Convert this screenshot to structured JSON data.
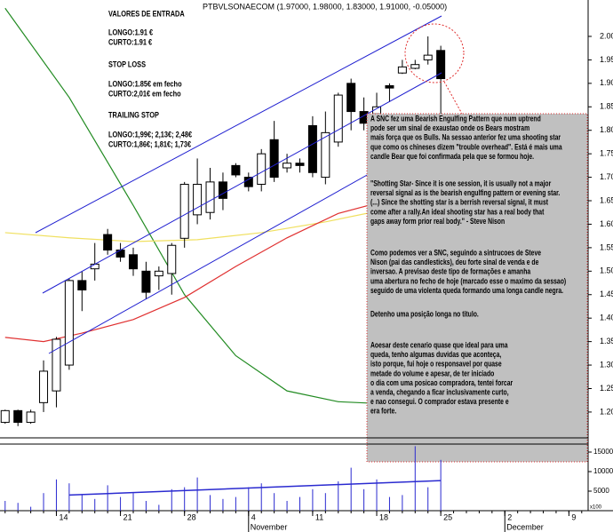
{
  "chart_data": {
    "type": "candlestick",
    "title": "PTBVLSONAECOM (1.97000, 1.98000, 1.83000, 1.91000, -0.05000)",
    "x": [
      0,
      1,
      2,
      3,
      4,
      5,
      6,
      7,
      8,
      9,
      10,
      11,
      12,
      13,
      14,
      15,
      16,
      17,
      18,
      19,
      20,
      21,
      22,
      23,
      24,
      25,
      26,
      27,
      28,
      29,
      30,
      31,
      32,
      33,
      34
    ],
    "open": [
      1.178,
      1.203,
      1.178,
      1.22,
      1.245,
      1.3,
      1.48,
      1.505,
      1.578,
      1.545,
      1.535,
      1.5,
      1.49,
      1.495,
      1.57,
      1.62,
      1.625,
      1.69,
      1.725,
      1.7,
      1.685,
      1.78,
      1.72,
      1.73,
      1.81,
      1.7,
      1.775,
      1.9,
      1.84,
      1.835,
      1.895,
      1.922,
      1.932,
      1.95,
      1.97
    ],
    "high": [
      1.205,
      1.205,
      1.205,
      1.31,
      1.36,
      1.485,
      1.5,
      1.56,
      1.59,
      1.56,
      1.55,
      1.52,
      1.51,
      1.56,
      1.69,
      1.74,
      1.72,
      1.71,
      1.73,
      1.71,
      1.76,
      1.82,
      1.75,
      1.74,
      1.83,
      1.84,
      1.88,
      1.91,
      1.87,
      1.88,
      1.9,
      1.95,
      1.95,
      2.0,
      1.98
    ],
    "low": [
      1.175,
      1.17,
      1.175,
      1.2,
      1.21,
      1.29,
      1.415,
      1.48,
      1.535,
      1.52,
      1.49,
      1.44,
      1.46,
      1.45,
      1.55,
      1.6,
      1.61,
      1.63,
      1.7,
      1.67,
      1.67,
      1.69,
      1.71,
      1.71,
      1.7,
      1.685,
      1.765,
      1.8,
      1.8,
      1.82,
      1.86,
      1.92,
      1.93,
      1.94,
      1.83
    ],
    "close": [
      1.203,
      1.178,
      1.2,
      1.287,
      1.355,
      1.48,
      1.46,
      1.515,
      1.545,
      1.53,
      1.505,
      1.455,
      1.5,
      1.555,
      1.685,
      1.685,
      1.69,
      1.655,
      1.705,
      1.68,
      1.75,
      1.7,
      1.73,
      1.725,
      1.71,
      1.795,
      1.875,
      1.84,
      1.815,
      1.85,
      1.89,
      1.935,
      1.94,
      1.96,
      1.91
    ],
    "up_color": "#ffffff",
    "down_color": "#000000",
    "overlays": [
      {
        "color": "#228b22",
        "x": [
          0,
          5,
          10,
          14,
          18,
          22,
          26,
          30,
          34
        ],
        "values": [
          2.06,
          1.87,
          1.64,
          1.45,
          1.32,
          1.245,
          1.222,
          1.217,
          1.236
        ]
      },
      {
        "color": "#f0e060",
        "x": [
          0,
          5,
          10,
          15,
          20,
          25,
          30,
          34
        ],
        "values": [
          1.582,
          1.571,
          1.563,
          1.567,
          1.582,
          1.605,
          1.633,
          1.652
        ]
      },
      {
        "color": "#e03030",
        "x": [
          0,
          3,
          6,
          10,
          14,
          18,
          22,
          26,
          30,
          34
        ],
        "values": [
          1.359,
          1.35,
          1.368,
          1.397,
          1.444,
          1.51,
          1.571,
          1.623,
          1.652,
          1.68
        ]
      }
    ],
    "volume": {
      "color": "#2a2ad0",
      "values": [
        2500,
        2000,
        1000,
        4500,
        8000,
        7000,
        4000,
        3000,
        6500,
        3500,
        4500,
        2500,
        1500,
        5500,
        6000,
        8500,
        4000,
        3000,
        3500,
        6000,
        7000,
        4500,
        2500,
        3500,
        5500,
        4500,
        7500,
        11000,
        5500,
        8000,
        3500,
        4000,
        16500,
        6000,
        13000
      ],
      "average": {
        "x": [
          5,
          34
        ],
        "values": [
          4000,
          7700
        ]
      },
      "ylim": [
        0,
        17045
      ],
      "yticks": [
        5000,
        10000,
        15000
      ],
      "unit": "x100"
    },
    "xlim": [
      -0.4,
      45.5
    ],
    "xticks": [
      {
        "value": 4,
        "label": "14"
      },
      {
        "value": 9,
        "label": "21"
      },
      {
        "value": 14,
        "label": "28"
      },
      {
        "value": 19,
        "label": "4"
      },
      {
        "value": 24,
        "label": "11"
      },
      {
        "value": 29,
        "label": "18"
      },
      {
        "value": 34,
        "label": "25"
      },
      {
        "value": 39,
        "label": "2"
      },
      {
        "value": 44,
        "label": "9"
      }
    ],
    "month_ticks": [
      {
        "value": 19,
        "label": "November"
      },
      {
        "value": 39,
        "label": "December"
      }
    ],
    "ylim": [
      1.145,
      2.0775
    ],
    "yticks": [
      {
        "value": 2,
        "label": "2.00"
      },
      1.95,
      {
        "value": 1.9,
        "label": "1.90"
      },
      1.85,
      {
        "value": 1.8,
        "label": "1.80"
      },
      1.75,
      {
        "value": 1.7,
        "label": "1.70"
      },
      1.65,
      {
        "value": 1.6,
        "label": "1.60"
      },
      1.55,
      {
        "value": 1.5,
        "label": "1.50"
      },
      1.45,
      {
        "value": 1.4,
        "label": "1.40"
      },
      1.35,
      {
        "value": 1.3,
        "label": "1.30"
      },
      1.25,
      {
        "value": 1.2,
        "label": "1.20"
      }
    ],
    "left_notes": [
      "VALORES DE ENTRADA",
      "LONGO:1.91 €",
      "CURTO:1.91 €",
      "STOP LOSS",
      "LONGO:1.85€ em fecho",
      "CURTO:2,01€ em fecho",
      "TRAILING STOP",
      "LONGO:1,99€; 2,13€; 2,48€",
      "CURTO:1,86€; 1,81€; 1,73€"
    ],
    "comment": [
      [
        "A SNC fez uma Bearish Engulfing Pattern que num uptrend",
        "pode ser um sinal de exaustao onde os Bears mostram",
        "mais força que os Bulls. Na sessao anterior fez uma shooting star",
        "que como os chineses dizem \"trouble overhead\". Está é mais uma",
        "candle Bear que foi confirmada pela que se formou hoje."
      ],
      [
        "\"Shotting Star- Since it is one session, it is usually not a major",
        "reversal signal as is the bearish engulfing pattern or evening star.",
        "(...) Since the shotting star is a berrish reversal signal, it must",
        "come after a rally.An ideal shooting star has a real body that",
        "gaps away form prior real body.\" - Steve Nison"
      ],
      [
        "Como podemos ver a SNC, seguindo a sintrucoes de Steve",
        "Nison (pai das candlesticks), deu forte sinal de venda e de",
        "inversao.  A previsao deste tipo de formações e amanha",
        "uma abertura no fecho de hoje (marcado esse o maximo da sessao)",
        "seguido de uma violenta queda formando uma longa candle negra."
      ],
      [
        "Detenho uma posição longa no titulo."
      ],
      [
        "Aoesar deste cenario quase que ideal para uma",
        "queda, tenho algumas duvidas que aconteça,",
        "isto porque, fui hoje o responsavel por quase",
        "metade do volume e apesar, de ter iniciado",
        "o dia com uma posicao compradora, tentei forcar",
        "a venda, chegando a ficar inclusivamente curto,",
        "e nao consegui. O comprador estava presente e",
        "era forte."
      ]
    ]
  }
}
